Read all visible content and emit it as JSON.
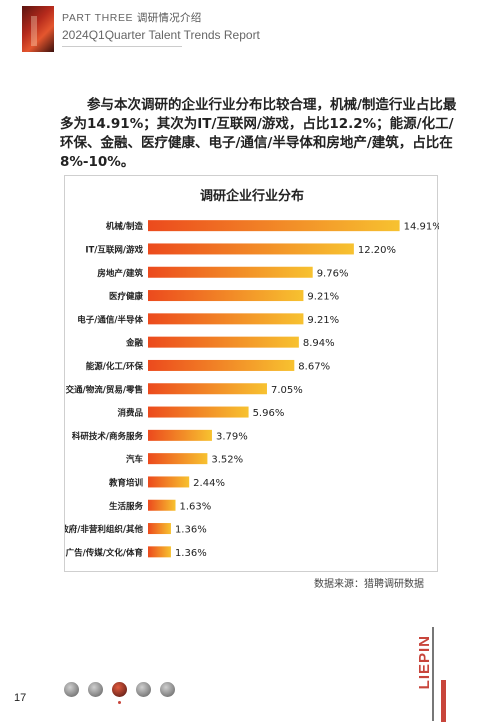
{
  "header": {
    "part_label": "PART  THREE",
    "section_title": "调研情况介绍",
    "subtitle": "2024Q1Quarter Talent Trends Report"
  },
  "intro_text": "参与本次调研的企业行业分布比较合理，机械/制造行业占比最多为14.91%；其次为IT/互联网/游戏，占比12.2%；能源/化工/环保、金融、医疗健康、电子/通信/半导体和房地产/建筑，占比在8%-10%。",
  "source_note": "数据来源：猎聘调研数据",
  "brand": "LIEPIN",
  "page_number": "17",
  "nav_items": [
    "nav-1",
    "nav-2",
    "nav-3",
    "nav-4",
    "nav-5"
  ],
  "nav_active_index": 2,
  "chart_data": {
    "type": "bar",
    "orientation": "horizontal",
    "title": "调研企业行业分布",
    "xlabel": "",
    "ylabel": "",
    "xlim": [
      0,
      16
    ],
    "x_ticks": [
      "0.00%",
      "2.00%",
      "4.00%",
      "6.00%",
      "8.00%",
      "10.00%",
      "12.00%",
      "14.00%",
      "16.00%"
    ],
    "grid": false,
    "legend": "none",
    "bar_gradient": [
      "#ec4a1d",
      "#f7c230"
    ],
    "categories": [
      "机械/制造",
      "IT/互联网/游戏",
      "房地产/建筑",
      "医疗健康",
      "电子/通信/半导体",
      "金融",
      "能源/化工/环保",
      "交通/物流/贸易/零售",
      "消费品",
      "科研技术/商务服务",
      "汽车",
      "教育培训",
      "生活服务",
      "政府/非营利组织/其他",
      "广告/传媒/文化/体育"
    ],
    "values": [
      14.91,
      12.2,
      9.76,
      9.21,
      9.21,
      8.94,
      8.67,
      7.05,
      5.96,
      3.79,
      3.52,
      2.44,
      1.63,
      1.36,
      1.36
    ],
    "value_labels": [
      "14.91%",
      "12.20%",
      "9.76%",
      "9.21%",
      "9.21%",
      "8.94%",
      "8.67%",
      "7.05%",
      "5.96%",
      "3.79%",
      "3.52%",
      "2.44%",
      "1.63%",
      "1.36%",
      "1.36%"
    ]
  }
}
